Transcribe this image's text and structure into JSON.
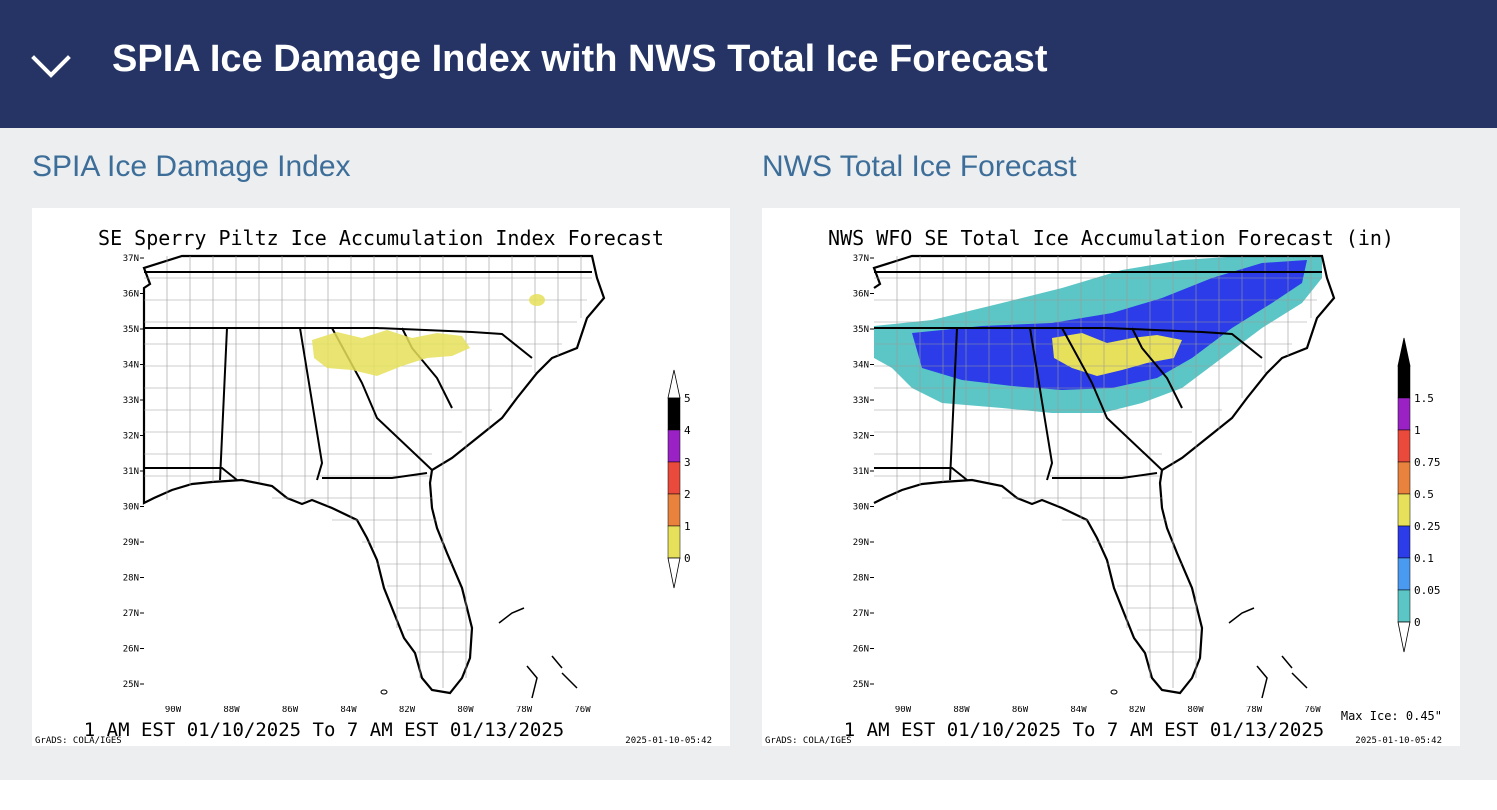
{
  "header": {
    "title": "SPIA Ice Damage Index with NWS Total Ice Forecast",
    "expand_icon": "chevron-down-icon"
  },
  "panels": [
    {
      "section_title": "SPIA Ice Damage Index",
      "map_title": "SE Sperry Piltz Ice Accumulation Index Forecast",
      "lat_labels": [
        "37N",
        "36N",
        "35N",
        "34N",
        "33N",
        "32N",
        "31N",
        "30N",
        "29N",
        "28N",
        "27N",
        "26N",
        "25N"
      ],
      "lon_labels": [
        "90W",
        "88W",
        "86W",
        "84W",
        "82W",
        "80W",
        "78W",
        "76W"
      ],
      "valid_period": "1 AM EST 01/10/2025 To 7 AM EST 01/13/2025",
      "credit": "GrADS: COLA/IGES",
      "run_time": "2025-01-10-05:42",
      "legend": {
        "labels": [
          "5",
          "4",
          "3",
          "2",
          "1",
          "0"
        ],
        "colors": [
          "#000000",
          "#9a22c4",
          "#e94a3c",
          "#e9823c",
          "#e6e05a"
        ]
      }
    },
    {
      "section_title": "NWS Total Ice Forecast",
      "map_title": "NWS WFO SE Total Ice Accumulation Forecast (in)",
      "lat_labels": [
        "37N",
        "36N",
        "35N",
        "34N",
        "33N",
        "32N",
        "31N",
        "30N",
        "29N",
        "28N",
        "27N",
        "26N",
        "25N"
      ],
      "lon_labels": [
        "90W",
        "88W",
        "86W",
        "84W",
        "82W",
        "80W",
        "78W",
        "76W"
      ],
      "valid_period": "1 AM EST 01/10/2025 To 7 AM EST 01/13/2025",
      "credit": "GrADS: COLA/IGES",
      "run_time": "2025-01-10-05:42",
      "max_ice": "Max Ice: 0.45\"",
      "legend": {
        "labels": [
          "1.5",
          "1",
          "0.75",
          "0.5",
          "0.25",
          "0.1",
          "0.05",
          "0"
        ],
        "colors": [
          "#000000",
          "#9a22c4",
          "#e94a3c",
          "#e9823c",
          "#e6e05a",
          "#2b3ce8",
          "#4b9af2",
          "#5cc6c6"
        ]
      }
    }
  ]
}
